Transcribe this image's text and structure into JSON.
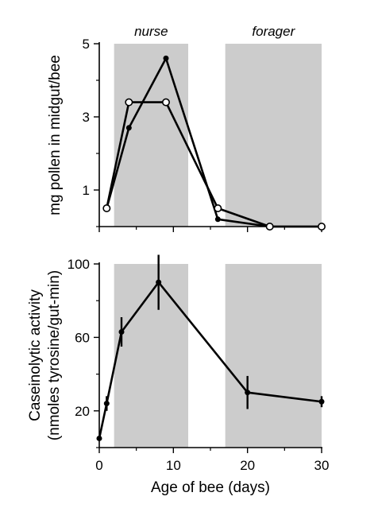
{
  "chart_data": [
    {
      "type": "line",
      "ylabel": "mg pollen in midgut/bee",
      "xlim": [
        0,
        30
      ],
      "ylim": [
        0,
        5
      ],
      "yticks": [
        1,
        3,
        5
      ],
      "xticks": [
        0,
        10,
        20,
        30
      ],
      "grid": false,
      "shaded_bands": [
        {
          "label": "nurse",
          "x": [
            2,
            12
          ]
        },
        {
          "label": "forager",
          "x": [
            17,
            30
          ]
        }
      ],
      "series": [
        {
          "marker": "filled",
          "x": [
            1,
            4,
            9,
            16,
            23,
            30
          ],
          "y": [
            0.5,
            2.7,
            4.6,
            0.2,
            0.0,
            0.0
          ]
        },
        {
          "marker": "open",
          "x": [
            1,
            4,
            9,
            16,
            23,
            30
          ],
          "y": [
            0.5,
            3.4,
            3.4,
            0.5,
            0.0,
            0.0
          ]
        }
      ]
    },
    {
      "type": "line",
      "xlabel": "Age of bee (days)",
      "ylabel": "Caseinolytic activity",
      "ylabel_line2": "(nmoles tyrosine/gut-min)",
      "xlim": [
        0,
        30
      ],
      "ylim": [
        0,
        100
      ],
      "yticks": [
        20,
        60,
        100
      ],
      "xticks": [
        0,
        10,
        20,
        30
      ],
      "xtick_labels": [
        "0",
        "10",
        "20",
        "30"
      ],
      "grid": false,
      "shaded_bands": [
        {
          "x": [
            2,
            12
          ]
        },
        {
          "x": [
            17,
            30
          ]
        }
      ],
      "series": [
        {
          "marker": "filled",
          "x": [
            0,
            1,
            3,
            8,
            20,
            30
          ],
          "y": [
            5,
            24,
            63,
            90,
            30,
            25
          ],
          "error": [
            0,
            4,
            8,
            15,
            9,
            3
          ]
        }
      ]
    }
  ]
}
